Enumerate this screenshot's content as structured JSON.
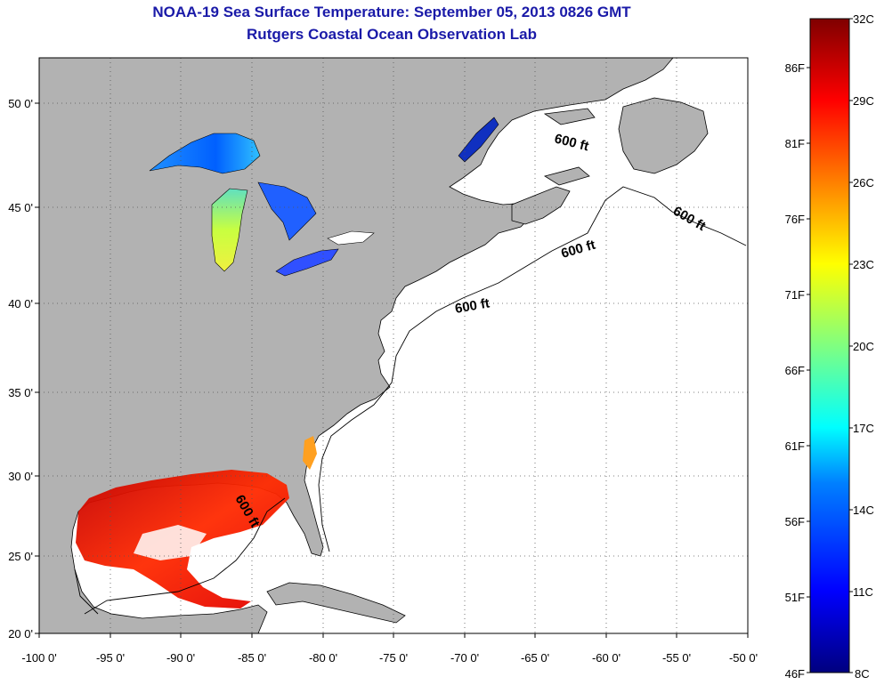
{
  "title": "NOAA-19 Sea Surface Temperature:  September 05, 2013 0826 GMT",
  "subtitle": "Rutgers Coastal Ocean Observation Lab",
  "map": {
    "lon_range": [
      -100,
      -50
    ],
    "lat_range": [
      20,
      52.3
    ],
    "grid": "dotted",
    "colors": {
      "land": "#b2b2b2",
      "ocean_nodata": "#ffffff",
      "coast": "#000000"
    },
    "lon_ticks": [
      {
        "value": -100,
        "label": "-100 0'"
      },
      {
        "value": -95,
        "label": "-95 0'"
      },
      {
        "value": -90,
        "label": "-90 0'"
      },
      {
        "value": -85,
        "label": "-85 0'"
      },
      {
        "value": -80,
        "label": "-80 0'"
      },
      {
        "value": -75,
        "label": "-75 0'"
      },
      {
        "value": -70,
        "label": "-70 0'"
      },
      {
        "value": -65,
        "label": "-65 0'"
      },
      {
        "value": -60,
        "label": "-60 0'"
      },
      {
        "value": -55,
        "label": "-55 0'"
      },
      {
        "value": -50,
        "label": "-50 0'"
      }
    ],
    "lat_ticks": [
      {
        "value": 20,
        "label": "20 0'"
      },
      {
        "value": 25,
        "label": "25 0'"
      },
      {
        "value": 30,
        "label": "30 0'"
      },
      {
        "value": 35,
        "label": "35 0'"
      },
      {
        "value": 40,
        "label": "40 0'"
      },
      {
        "value": 45,
        "label": "45 0'"
      },
      {
        "value": 50,
        "label": "50 0'"
      }
    ],
    "contour_labels": [
      "600 ft",
      "600 ft",
      "600 ft",
      "600 ft",
      "600 ft"
    ]
  },
  "colorbar": {
    "min_c": 8,
    "max_c": 32,
    "celsius_ticks": [
      {
        "value": 32,
        "label": "32C"
      },
      {
        "value": 29,
        "label": "29C"
      },
      {
        "value": 26,
        "label": "26C"
      },
      {
        "value": 23,
        "label": "23C"
      },
      {
        "value": 20,
        "label": "20C"
      },
      {
        "value": 17,
        "label": "17C"
      },
      {
        "value": 14,
        "label": "14C"
      },
      {
        "value": 11,
        "label": "11C"
      },
      {
        "value": 8,
        "label": "8C"
      }
    ],
    "fahrenheit_ticks": [
      {
        "value": 86,
        "label": "86F"
      },
      {
        "value": 81,
        "label": "81F"
      },
      {
        "value": 76,
        "label": "76F"
      },
      {
        "value": 71,
        "label": "71F"
      },
      {
        "value": 66,
        "label": "66F"
      },
      {
        "value": 61,
        "label": "61F"
      },
      {
        "value": 56,
        "label": "56F"
      },
      {
        "value": 51,
        "label": "51F"
      },
      {
        "value": 46,
        "label": "46F"
      }
    ],
    "colormap": [
      "#00007f",
      "#0000ff",
      "#0080ff",
      "#00ffff",
      "#80ff80",
      "#ffff00",
      "#ff8000",
      "#ff0000",
      "#7f0000"
    ]
  }
}
